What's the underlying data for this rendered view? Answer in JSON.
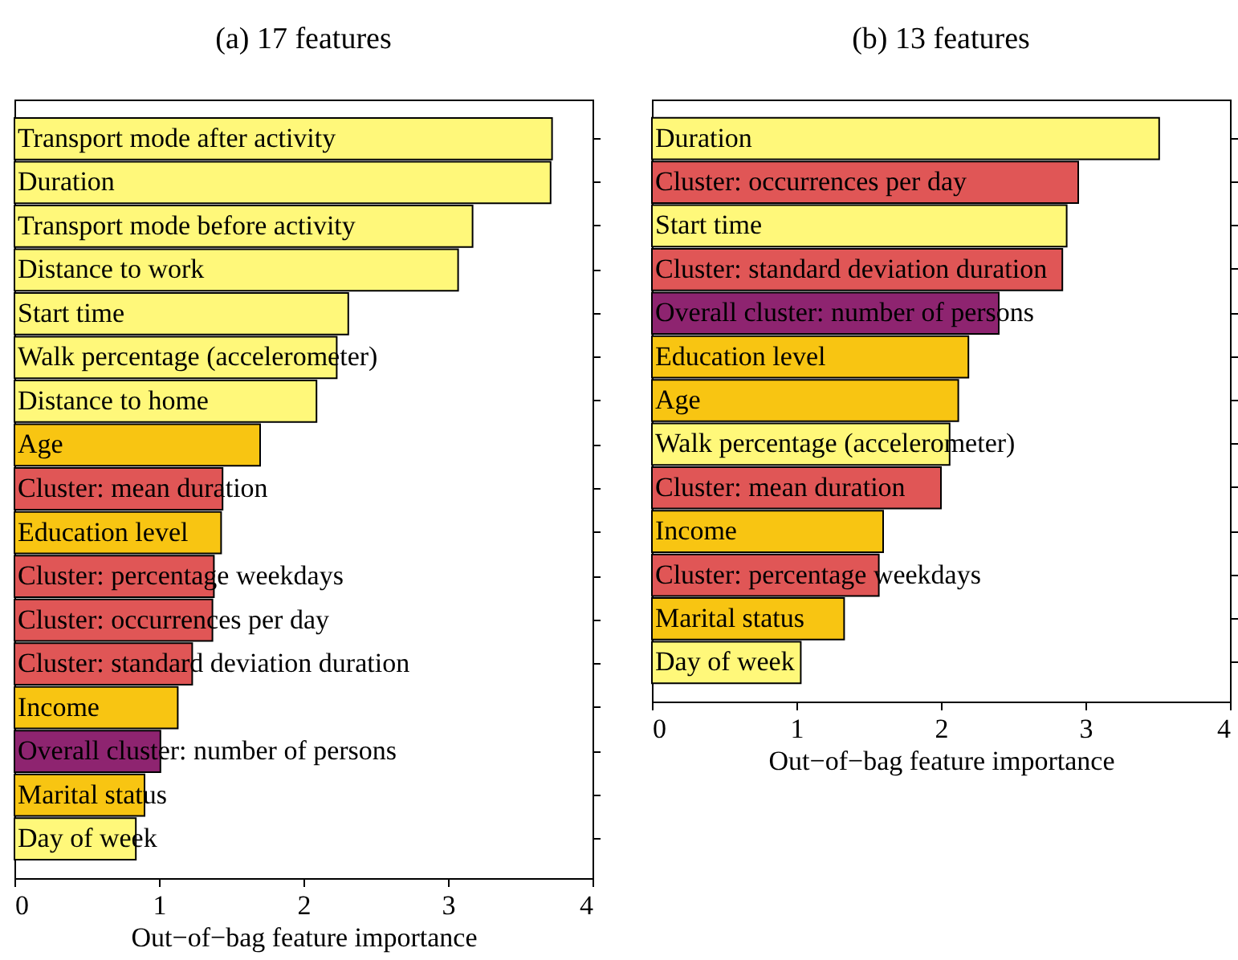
{
  "chart_data": [
    {
      "type": "bar",
      "orientation": "horizontal",
      "title": "(a) 17 features",
      "xlabel": "Out−of−bag feature importance",
      "tick_labels": "x",
      "categories": [
        "Transport mode after activity",
        "Duration",
        "Transport mode before activity",
        "Distance to work",
        "Start time",
        "Walk percentage (accelerometer)",
        "Distance to home",
        "Age",
        "Cluster: mean duration",
        "Education level",
        "Cluster: percentage weekdays",
        "Cluster: occurrences per day",
        "Cluster: standard deviation duration",
        "Income",
        "Overall cluster: number of persons",
        "Marital status",
        "Day of week"
      ],
      "values": [
        3.72,
        3.71,
        3.17,
        3.07,
        2.31,
        2.23,
        2.09,
        1.7,
        1.44,
        1.43,
        1.38,
        1.37,
        1.23,
        1.13,
        1.01,
        0.9,
        0.84
      ],
      "colors": [
        "#fff87a",
        "#fff87a",
        "#fff87a",
        "#fff87a",
        "#fff87a",
        "#fff87a",
        "#fff87a",
        "#f8c512",
        "#e05656",
        "#f8c512",
        "#e05656",
        "#e05656",
        "#e05656",
        "#f8c512",
        "#8e2470",
        "#f8c512",
        "#fff87a"
      ],
      "xlim": [
        0,
        4
      ],
      "xticks": [
        0,
        1,
        2,
        3,
        4
      ]
    },
    {
      "type": "bar",
      "orientation": "horizontal",
      "title": "(b) 13 features",
      "xlabel": "Out−of−bag feature importance",
      "tick_labels": "x",
      "categories": [
        "Duration",
        "Cluster: occurrences per day",
        "Start time",
        "Cluster: standard deviation duration",
        "Overall cluster: number of persons",
        "Education level",
        "Age",
        "Walk percentage (accelerometer)",
        "Cluster: mean duration",
        "Income",
        "Cluster: percentage weekdays",
        "Marital status",
        "Day of week"
      ],
      "values": [
        3.51,
        2.95,
        2.87,
        2.84,
        2.4,
        2.19,
        2.12,
        2.06,
        2.0,
        1.6,
        1.57,
        1.33,
        1.03
      ],
      "colors": [
        "#fff87a",
        "#e05656",
        "#fff87a",
        "#e05656",
        "#8e2470",
        "#f8c512",
        "#f8c512",
        "#fff87a",
        "#e05656",
        "#f8c512",
        "#e05656",
        "#f8c512",
        "#fff87a"
      ],
      "xlim": [
        0,
        4
      ],
      "xticks": [
        0,
        1,
        2,
        3,
        4
      ]
    }
  ]
}
